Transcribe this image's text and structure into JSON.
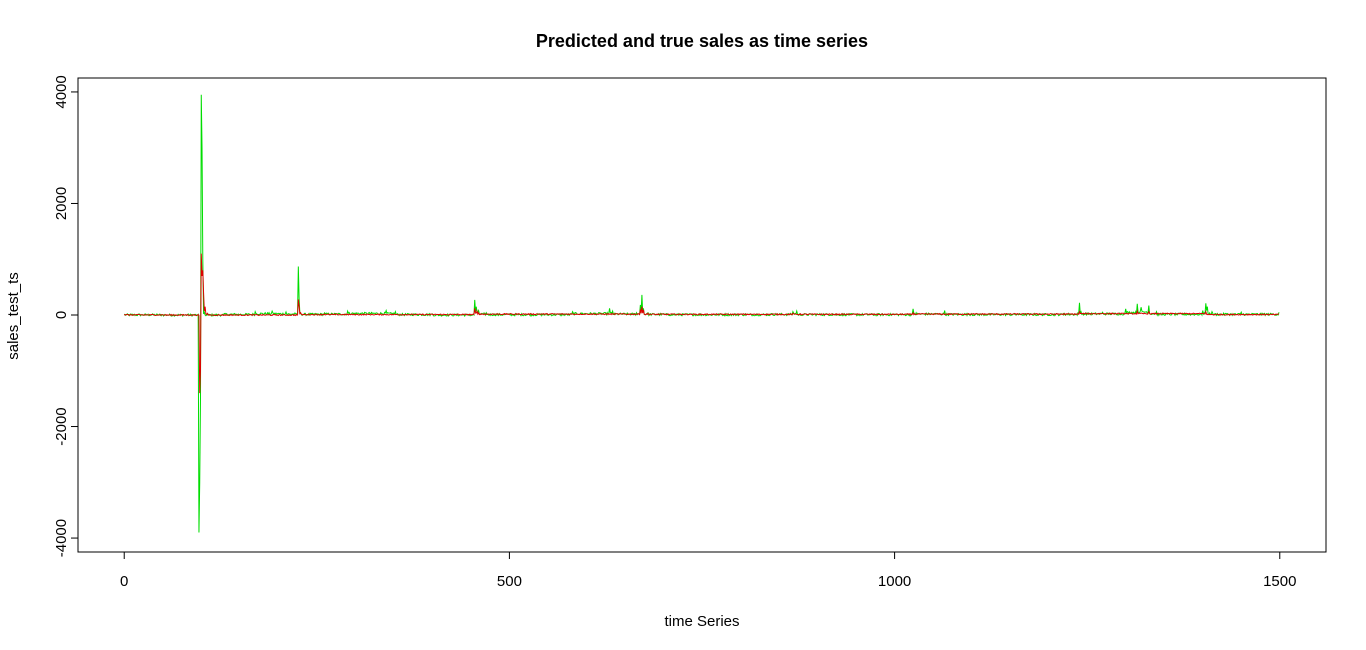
{
  "chart_data": {
    "type": "line",
    "title": "Predicted and true sales as time series",
    "xlabel": "time Series",
    "ylabel": "sales_test_ts",
    "xlim": [
      -60,
      1560
    ],
    "ylim": [
      -4250,
      4250
    ],
    "xticks": [
      0,
      500,
      1000,
      1500
    ],
    "yticks": [
      -4000,
      -2000,
      0,
      2000,
      4000
    ],
    "xtick_labels": [
      "0",
      "500",
      "1000",
      "1500"
    ],
    "ytick_labels": [
      "-4000",
      "-2000",
      "0",
      "2000",
      "4000"
    ],
    "grid": false,
    "legend": "none",
    "n_points": 1500,
    "series": [
      {
        "color": "#00dd00",
        "baseline": 0,
        "points": [
          [
            0,
            15
          ],
          [
            50,
            5
          ],
          [
            95,
            0
          ],
          [
            97,
            -3900
          ],
          [
            98,
            -3000
          ],
          [
            99,
            -1500
          ],
          [
            100,
            3950
          ],
          [
            101,
            3000
          ],
          [
            102,
            1000
          ],
          [
            104,
            50
          ],
          [
            108,
            0
          ],
          [
            130,
            25
          ],
          [
            170,
            60
          ],
          [
            192,
            70
          ],
          [
            210,
            55
          ],
          [
            225,
            40
          ],
          [
            226,
            870
          ],
          [
            227,
            300
          ],
          [
            229,
            30
          ],
          [
            260,
            40
          ],
          [
            290,
            70
          ],
          [
            340,
            80
          ],
          [
            352,
            60
          ],
          [
            400,
            20
          ],
          [
            425,
            0
          ],
          [
            455,
            270
          ],
          [
            457,
            150
          ],
          [
            460,
            80
          ],
          [
            470,
            40
          ],
          [
            500,
            15
          ],
          [
            582,
            60
          ],
          [
            630,
            120
          ],
          [
            634,
            70
          ],
          [
            665,
            40
          ],
          [
            670,
            180
          ],
          [
            672,
            360
          ],
          [
            674,
            120
          ],
          [
            680,
            40
          ],
          [
            700,
            25
          ],
          [
            800,
            15
          ],
          [
            840,
            25
          ],
          [
            868,
            60
          ],
          [
            873,
            70
          ],
          [
            920,
            20
          ],
          [
            1000,
            15
          ],
          [
            1024,
            110
          ],
          [
            1028,
            40
          ],
          [
            1065,
            80
          ],
          [
            1100,
            25
          ],
          [
            1160,
            20
          ],
          [
            1220,
            30
          ],
          [
            1238,
            40
          ],
          [
            1240,
            220
          ],
          [
            1242,
            60
          ],
          [
            1270,
            50
          ],
          [
            1300,
            110
          ],
          [
            1315,
            200
          ],
          [
            1320,
            140
          ],
          [
            1330,
            170
          ],
          [
            1340,
            60
          ],
          [
            1360,
            30
          ],
          [
            1400,
            80
          ],
          [
            1404,
            210
          ],
          [
            1406,
            150
          ],
          [
            1412,
            60
          ],
          [
            1430,
            30
          ],
          [
            1450,
            50
          ],
          [
            1480,
            30
          ],
          [
            1499,
            50
          ]
        ]
      },
      {
        "color": "#dd0000",
        "baseline": 0,
        "points": [
          [
            0,
            10
          ],
          [
            50,
            5
          ],
          [
            95,
            0
          ],
          [
            98,
            -1400
          ],
          [
            99,
            -1000
          ],
          [
            100,
            1100
          ],
          [
            101,
            700
          ],
          [
            102,
            800
          ],
          [
            103,
            400
          ],
          [
            105,
            150
          ],
          [
            108,
            30
          ],
          [
            112,
            0
          ],
          [
            226,
            280
          ],
          [
            227,
            160
          ],
          [
            229,
            40
          ],
          [
            260,
            20
          ],
          [
            455,
            120
          ],
          [
            458,
            70
          ],
          [
            460,
            40
          ],
          [
            670,
            100
          ],
          [
            672,
            150
          ],
          [
            674,
            90
          ],
          [
            680,
            30
          ],
          [
            868,
            30
          ],
          [
            1024,
            40
          ],
          [
            1240,
            60
          ],
          [
            1315,
            70
          ],
          [
            1330,
            60
          ],
          [
            1404,
            60
          ],
          [
            1480,
            20
          ],
          [
            1499,
            20
          ]
        ]
      }
    ]
  }
}
